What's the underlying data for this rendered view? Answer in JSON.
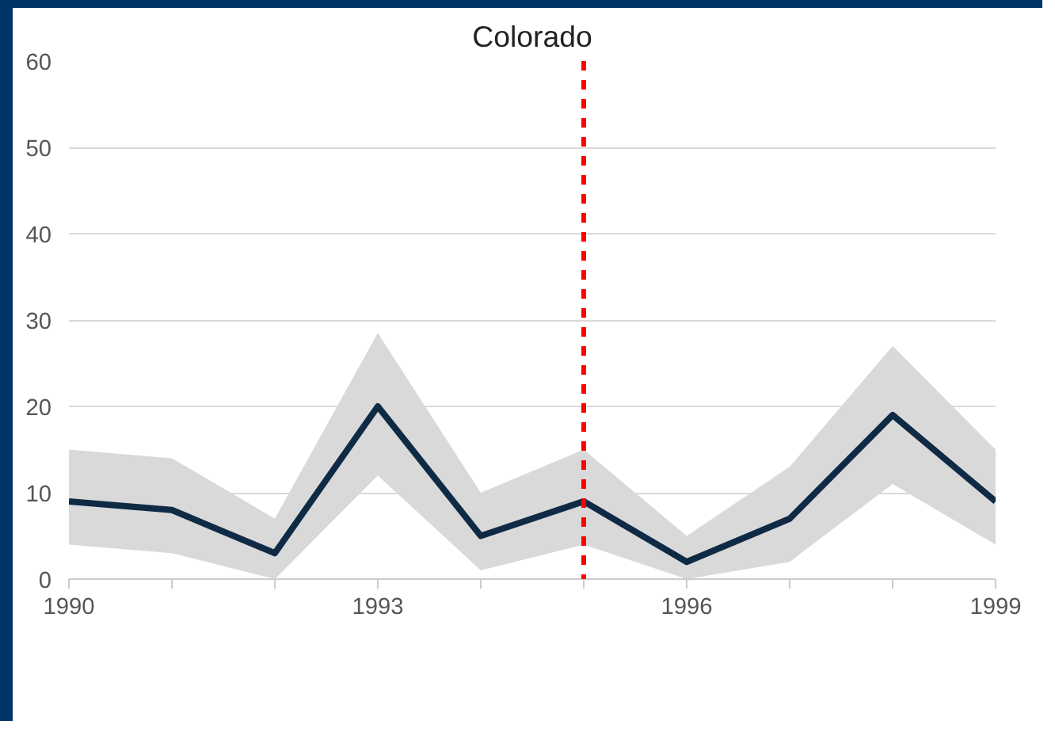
{
  "chart_data": {
    "type": "line",
    "title": "Colorado",
    "x": [
      1990,
      1991,
      1992,
      1993,
      1994,
      1995,
      1996,
      1997,
      1998,
      1999
    ],
    "series": [
      {
        "color": "#0f2a45",
        "values": [
          9,
          8,
          3,
          20,
          5,
          9,
          2,
          7,
          19,
          9
        ],
        "lower": [
          4,
          3,
          0,
          12,
          1,
          4,
          0,
          2,
          11,
          4
        ],
        "upper": [
          15,
          14,
          7,
          28.5,
          10,
          15,
          5,
          13,
          27,
          15
        ]
      }
    ],
    "xlim": [
      1990,
      1999
    ],
    "ylim": [
      0,
      60
    ],
    "xticks": [
      1990,
      {
        "value": 1991,
        "label": null
      },
      {
        "value": 1992,
        "label": null
      },
      1993,
      {
        "value": 1994,
        "label": null
      },
      {
        "value": 1995,
        "label": null
      },
      1996,
      {
        "value": 1997,
        "label": null
      },
      {
        "value": 1998,
        "label": null
      },
      1999
    ],
    "yticks": [
      0,
      10,
      20,
      30,
      40,
      50,
      60
    ],
    "grid": "y",
    "marker": "none",
    "line_style": "solid",
    "ref_lines": [
      {
        "axis": "x",
        "value": 1995,
        "label": null,
        "color": "#ff0000",
        "line_style": "dashed"
      }
    ]
  }
}
